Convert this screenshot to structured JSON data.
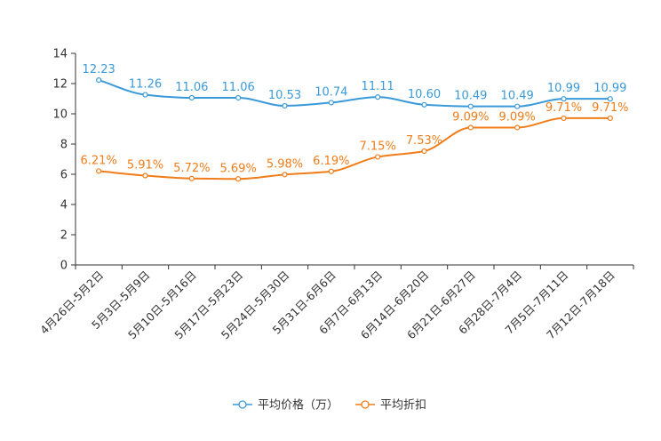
{
  "chart_data": {
    "type": "line",
    "title": "",
    "xlabel": "",
    "ylabel": "",
    "ylim": [
      0,
      14
    ],
    "yticks": [
      0,
      2,
      4,
      6,
      8,
      10,
      12,
      14
    ],
    "grid": false,
    "legend_position": "bottom-center",
    "categories": [
      "4月26日-5月2日",
      "5月3日-5月9日",
      "5月10日-5月16日",
      "5月17日-5月23日",
      "5月24日-5月30日",
      "5月31日-6月6日",
      "6月7日-6月13日",
      "6月14日-6月20日",
      "6月21日-6月27日",
      "6月28日-7月4日",
      "7月5日-7月11日",
      "7月12日-7月18日"
    ],
    "series": [
      {
        "name": "平均价格（万）",
        "color": "#3a9ad9",
        "values": [
          12.23,
          11.26,
          11.06,
          11.06,
          10.53,
          10.74,
          11.11,
          10.6,
          10.49,
          10.49,
          10.99,
          10.99
        ],
        "labels": [
          "12.23",
          "11.26",
          "11.06",
          "11.06",
          "10.53",
          "10.74",
          "11.11",
          "10.60",
          "10.49",
          "10.49",
          "10.99",
          "10.99"
        ]
      },
      {
        "name": "平均折扣",
        "color": "#f07d1a",
        "values": [
          6.21,
          5.91,
          5.72,
          5.69,
          5.98,
          6.19,
          7.15,
          7.53,
          9.09,
          9.09,
          9.71,
          9.71
        ],
        "labels": [
          "6.21%",
          "5.91%",
          "5.72%",
          "5.69%",
          "5.98%",
          "6.19%",
          "7.15%",
          "7.53%",
          "9.09%",
          "9.09%",
          "9.71%",
          "9.71%"
        ]
      }
    ]
  }
}
